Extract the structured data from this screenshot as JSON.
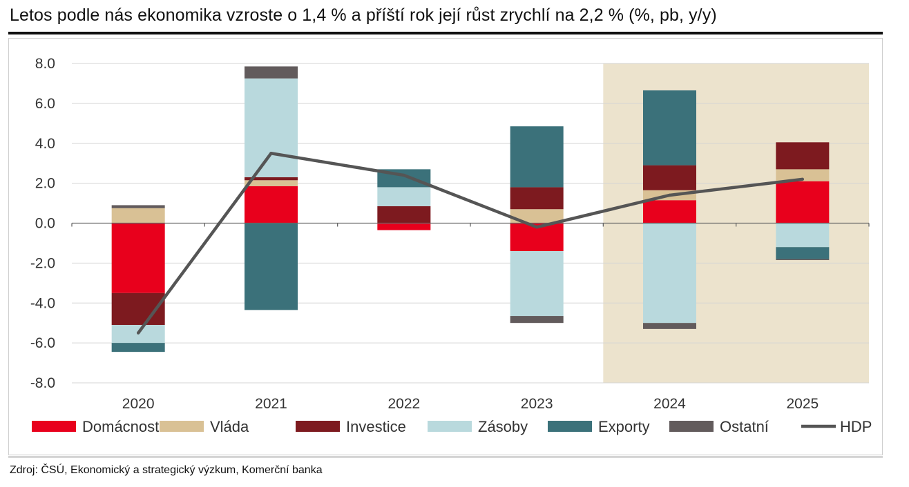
{
  "title": "Letos podle nás ekonomika vzroste o 1,4 % a příští rok její růst zrychlí na 2,2 % (%, pb, y/y)",
  "source": "Zdroj: ČSÚ, Ekonomický a strategický výzkum, Komerční banka",
  "chart_data": {
    "type": "bar",
    "stacked": true,
    "categories": [
      "2020",
      "2021",
      "2022",
      "2023",
      "2024",
      "2025"
    ],
    "ylim": [
      -8,
      8
    ],
    "yticks": [
      "8.0",
      "6.0",
      "4.0",
      "2.0",
      "0.0",
      "-2.0",
      "-4.0",
      "-6.0",
      "-8.0"
    ],
    "ytick_values": [
      8,
      6,
      4,
      2,
      0,
      -2,
      -4,
      -6,
      -8
    ],
    "forecast_highlight": [
      "2024",
      "2025"
    ],
    "forecast_color": "#ece3cd",
    "grid": true,
    "legend_position": "bottom",
    "series": [
      {
        "name": "Domácnosti",
        "color": "#e8001c",
        "values": [
          -3.5,
          1.85,
          -0.35,
          -1.4,
          1.15,
          2.1
        ]
      },
      {
        "name": "Vláda",
        "color": "#d9c195",
        "values": [
          0.75,
          0.3,
          0.0,
          0.7,
          0.5,
          0.6
        ]
      },
      {
        "name": "Investice",
        "color": "#7d1a1f",
        "values": [
          -1.6,
          0.15,
          0.85,
          1.1,
          1.25,
          1.35
        ]
      },
      {
        "name": "Zásoby",
        "color": "#b9d9dd",
        "values": [
          -0.9,
          4.95,
          0.95,
          -3.25,
          -5.0,
          -1.2
        ]
      },
      {
        "name": "Exporty",
        "color": "#3b717a",
        "values": [
          -0.45,
          -4.35,
          0.9,
          3.05,
          3.75,
          -0.6
        ]
      },
      {
        "name": "Ostatní",
        "color": "#625b5c",
        "values": [
          0.15,
          0.6,
          0.0,
          -0.35,
          -0.3,
          -0.05
        ]
      }
    ],
    "line": {
      "name": "HDP",
      "color": "#555555",
      "values": [
        -5.5,
        3.5,
        2.4,
        -0.2,
        1.4,
        2.2
      ]
    }
  }
}
